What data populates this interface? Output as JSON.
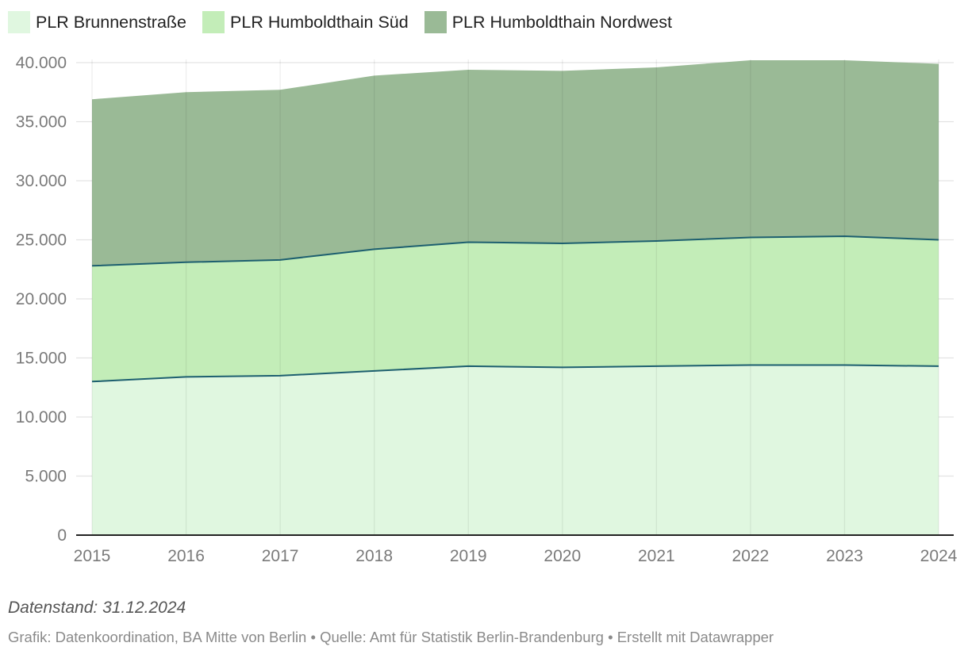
{
  "chart_data": {
    "type": "area",
    "stacked": true,
    "categories": [
      "2015",
      "2016",
      "2017",
      "2018",
      "2019",
      "2020",
      "2021",
      "2022",
      "2023",
      "2024"
    ],
    "series": [
      {
        "name": "PLR Brunnenstraße",
        "color": "#e0f7e0",
        "values": [
          13000,
          13400,
          13500,
          13900,
          14300,
          14200,
          14300,
          14400,
          14400,
          14300
        ]
      },
      {
        "name": "PLR Humboldthain Süd",
        "color": "#c3edb8",
        "values": [
          9800,
          9700,
          9800,
          10300,
          10500,
          10500,
          10600,
          10800,
          10900,
          10700
        ]
      },
      {
        "name": "PLR Humboldthain Nordwest",
        "color": "#9aba96",
        "values": [
          14100,
          14400,
          14400,
          14700,
          14600,
          14600,
          14700,
          15000,
          14900,
          14900
        ]
      }
    ],
    "ylim": [
      0,
      40000
    ],
    "yticks": [
      "0",
      "5.000",
      "10.000",
      "15.000",
      "20.000",
      "25.000",
      "30.000",
      "35.000",
      "40.000"
    ],
    "ytick_values": [
      0,
      5000,
      10000,
      15000,
      20000,
      25000,
      30000,
      35000,
      40000
    ],
    "grid": true,
    "legend_position": "top-left",
    "boundary_line_color": "#1d5f6f"
  },
  "notes": "Datenstand: 31.12.2024",
  "footer": "Grafik: Datenkoordination, BA Mitte von Berlin • Quelle: Amt für Statistik Berlin-Brandenburg • Erstellt mit Datawrapper"
}
